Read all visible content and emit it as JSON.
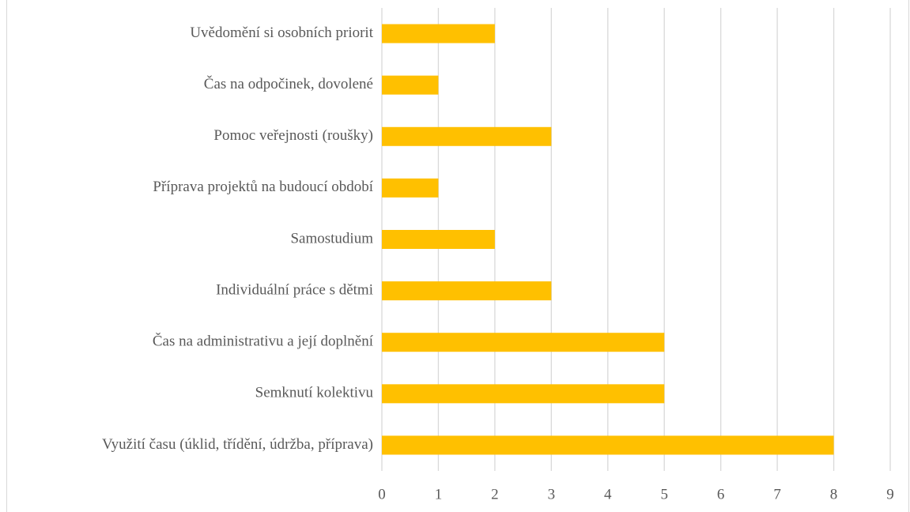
{
  "chart_data": {
    "type": "bar",
    "orientation": "horizontal",
    "categories": [
      "Uvědomění si osobních priorit",
      "Čas na odpočinek, dovolené",
      "Pomoc veřejnosti (roušky)",
      "Příprava projektů na budoucí období",
      "Samostudium",
      "Individuální práce s dětmi",
      "Čas na administrativu a její doplnění",
      "Semknutí kolektivu",
      "Využití času (úklid, třídění, údržba, příprava)"
    ],
    "values": [
      2,
      1,
      3,
      1,
      2,
      3,
      5,
      5,
      8
    ],
    "color": "#ffc000",
    "xlim": [
      0,
      9
    ],
    "xticks": [
      0,
      1,
      2,
      3,
      4,
      5,
      6,
      7,
      8,
      9
    ],
    "grid": true
  }
}
